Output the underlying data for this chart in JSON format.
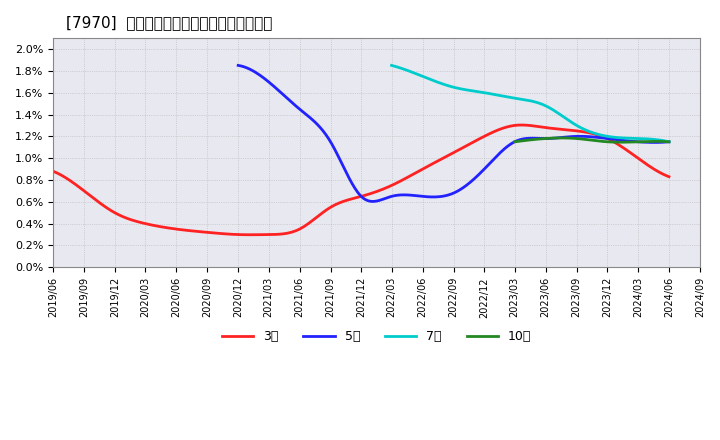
{
  "title": "[7970]  経常利益マージンの標準偏差の推移",
  "ylabel": "",
  "ylim": [
    0.0,
    0.021
  ],
  "yticks": [
    0.0,
    0.002,
    0.004,
    0.006,
    0.008,
    0.01,
    0.012,
    0.014,
    0.016,
    0.018,
    0.02
  ],
  "ytick_labels": [
    "0.0%",
    "0.2%",
    "0.4%",
    "0.6%",
    "0.8%",
    "1.0%",
    "1.2%",
    "1.4%",
    "1.6%",
    "1.8%",
    "2.0%"
  ],
  "background_color": "#ffffff",
  "grid_color": "#aaaaaa",
  "series": {
    "3年": {
      "color": "#ff2222",
      "dates": [
        "2019-06",
        "2019-09",
        "2019-12",
        "2020-03",
        "2020-06",
        "2020-09",
        "2020-12",
        "2021-03",
        "2021-06",
        "2021-09",
        "2021-12",
        "2022-03",
        "2022-06",
        "2022-09",
        "2022-12",
        "2023-03",
        "2023-06",
        "2023-09",
        "2023-12",
        "2024-03",
        "2024-06"
      ],
      "values": [
        0.0088,
        0.007,
        0.005,
        0.004,
        0.0035,
        0.0032,
        0.003,
        0.003,
        0.0035,
        0.0055,
        0.0065,
        0.0075,
        0.009,
        0.0105,
        0.012,
        0.013,
        0.0128,
        0.0125,
        0.0118,
        0.01,
        0.0083
      ]
    },
    "5年": {
      "color": "#2222ff",
      "dates": [
        "2019-06",
        "2019-09",
        "2019-12",
        "2020-03",
        "2020-06",
        "2020-09",
        "2020-12",
        "2021-03",
        "2021-06",
        "2021-09",
        "2021-12",
        "2022-03",
        "2022-06",
        "2022-09",
        "2022-12",
        "2023-03",
        "2023-06",
        "2023-09",
        "2023-12",
        "2024-03",
        "2024-06"
      ],
      "values": [
        null,
        null,
        null,
        null,
        null,
        null,
        0.0185,
        0.017,
        0.0145,
        0.0115,
        0.0065,
        0.0065,
        0.0065,
        0.0068,
        0.009,
        0.0115,
        0.0118,
        0.012,
        0.0118,
        0.0115,
        0.0115
      ]
    },
    "7年": {
      "color": "#00cccc",
      "dates": [
        "2019-06",
        "2019-09",
        "2019-12",
        "2020-03",
        "2020-06",
        "2020-09",
        "2020-12",
        "2021-03",
        "2022-03",
        "2022-06",
        "2022-09",
        "2022-12",
        "2023-03",
        "2023-06",
        "2023-09",
        "2023-12",
        "2024-03",
        "2024-06"
      ],
      "values": [
        null,
        null,
        null,
        null,
        null,
        null,
        null,
        null,
        0.0185,
        0.0175,
        0.0165,
        0.016,
        0.0155,
        0.0148,
        0.013,
        0.012,
        0.0118,
        0.0115
      ]
    },
    "10年": {
      "color": "#228822",
      "dates": [
        "2023-03",
        "2023-06",
        "2023-09",
        "2023-12",
        "2024-03",
        "2024-06"
      ],
      "values": [
        0.0115,
        0.0118,
        0.0118,
        0.0115,
        0.0115,
        0.0115
      ]
    }
  },
  "legend": {
    "labels": [
      "3年",
      "5年",
      "7年",
      "10年"
    ],
    "colors": [
      "#ff2222",
      "#2222ff",
      "#00cccc",
      "#228822"
    ],
    "loc": "lower center",
    "ncol": 4
  },
  "xtick_dates": [
    "2019/06",
    "2019/09",
    "2019/12",
    "2020/03",
    "2020/06",
    "2020/09",
    "2020/12",
    "2021/03",
    "2021/06",
    "2021/09",
    "2021/12",
    "2022/03",
    "2022/06",
    "2022/09",
    "2022/12",
    "2023/03",
    "2023/06",
    "2023/09",
    "2023/12",
    "2024/03",
    "2024/06",
    "2024/09"
  ]
}
